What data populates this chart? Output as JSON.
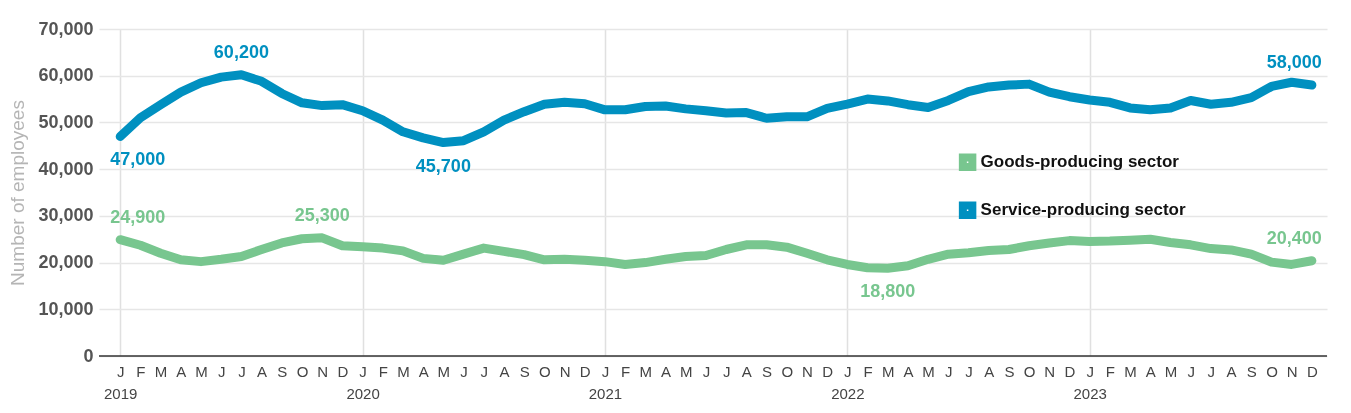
{
  "chart_data": {
    "type": "line",
    "ylabel": "Number of employees",
    "categories": [
      "J\n2019",
      "F",
      "M",
      "A",
      "M",
      "J",
      "J",
      "A",
      "S",
      "O",
      "N",
      "D",
      "J\n2020",
      "F",
      "M",
      "A",
      "M",
      "J",
      "J",
      "A",
      "S",
      "O",
      "N",
      "D",
      "J\n2021",
      "F",
      "M",
      "A",
      "M",
      "J",
      "J",
      "A",
      "S",
      "O",
      "N",
      "D",
      "J\n2022",
      "F",
      "M",
      "A",
      "M",
      "J",
      "J",
      "A",
      "S",
      "O",
      "N",
      "D",
      "J\n2023",
      "F",
      "M",
      "A",
      "M",
      "J",
      "J",
      "A",
      "S",
      "O",
      "N",
      "D"
    ],
    "series": [
      {
        "name": "Goods-producing sector",
        "color": "#78c68f",
        "values": [
          24900,
          23700,
          22000,
          20600,
          20200,
          20700,
          21300,
          22800,
          24200,
          25100,
          25300,
          23600,
          23400,
          23100,
          22500,
          20900,
          20500,
          21800,
          23100,
          22400,
          21700,
          20600,
          20700,
          20500,
          20200,
          19600,
          20000,
          20700,
          21300,
          21500,
          22800,
          23800,
          23800,
          23300,
          22000,
          20600,
          19600,
          18900,
          18800,
          19300,
          20700,
          21800,
          22100,
          22600,
          22800,
          23600,
          24200,
          24700,
          24500,
          24600,
          24800,
          25000,
          24300,
          23800,
          23000,
          22700,
          21800,
          20100,
          19600,
          20400
        ],
        "value_labels": [
          "24,900",
          null,
          null,
          null,
          null,
          null,
          null,
          null,
          null,
          null,
          "25,300",
          null,
          null,
          null,
          null,
          null,
          null,
          null,
          null,
          null,
          null,
          null,
          null,
          null,
          null,
          null,
          null,
          null,
          null,
          null,
          null,
          null,
          null,
          null,
          null,
          null,
          null,
          null,
          "18,800",
          null,
          null,
          null,
          null,
          null,
          null,
          null,
          null,
          null,
          null,
          null,
          null,
          null,
          null,
          null,
          null,
          null,
          null,
          null,
          null,
          "20,400"
        ]
      },
      {
        "name": "Service-producing sector",
        "color": "#0090c0",
        "values": [
          47000,
          51000,
          53800,
          56500,
          58500,
          59700,
          60200,
          58800,
          56200,
          54200,
          53600,
          53800,
          52500,
          50500,
          48000,
          46700,
          45700,
          46100,
          48000,
          50500,
          52300,
          53900,
          54300,
          54000,
          52700,
          52700,
          53400,
          53500,
          52900,
          52500,
          52000,
          52100,
          50900,
          51200,
          51200,
          53000,
          53900,
          55000,
          54600,
          53800,
          53200,
          54700,
          56600,
          57600,
          58000,
          58200,
          56500,
          55500,
          54800,
          54300,
          53100,
          52700,
          53100,
          54700,
          53900,
          54300,
          55300,
          57700,
          58600,
          58000
        ],
        "value_labels": [
          "47,000",
          null,
          null,
          null,
          null,
          null,
          "60,200",
          null,
          null,
          null,
          null,
          null,
          null,
          null,
          null,
          null,
          "45,700",
          null,
          null,
          null,
          null,
          null,
          null,
          null,
          null,
          null,
          null,
          null,
          null,
          null,
          null,
          null,
          null,
          null,
          null,
          null,
          null,
          null,
          null,
          null,
          null,
          null,
          null,
          null,
          null,
          null,
          null,
          null,
          null,
          null,
          null,
          null,
          null,
          null,
          null,
          null,
          null,
          null,
          null,
          "58,000"
        ]
      }
    ],
    "ylim": [
      0,
      70000
    ],
    "yticks": [
      {
        "value": 0,
        "label": "0"
      },
      {
        "value": 10000,
        "label": "10,000"
      },
      {
        "value": 20000,
        "label": "20,000"
      },
      {
        "value": 30000,
        "label": "30,000"
      },
      {
        "value": 40000,
        "label": "40,000"
      },
      {
        "value": 50000,
        "label": "50,000"
      },
      {
        "value": 60000,
        "label": "60,000"
      },
      {
        "value": 70000,
        "label": "70,000"
      }
    ],
    "grid": true,
    "legend": "right",
    "marker": "none",
    "line_style": "solid"
  }
}
